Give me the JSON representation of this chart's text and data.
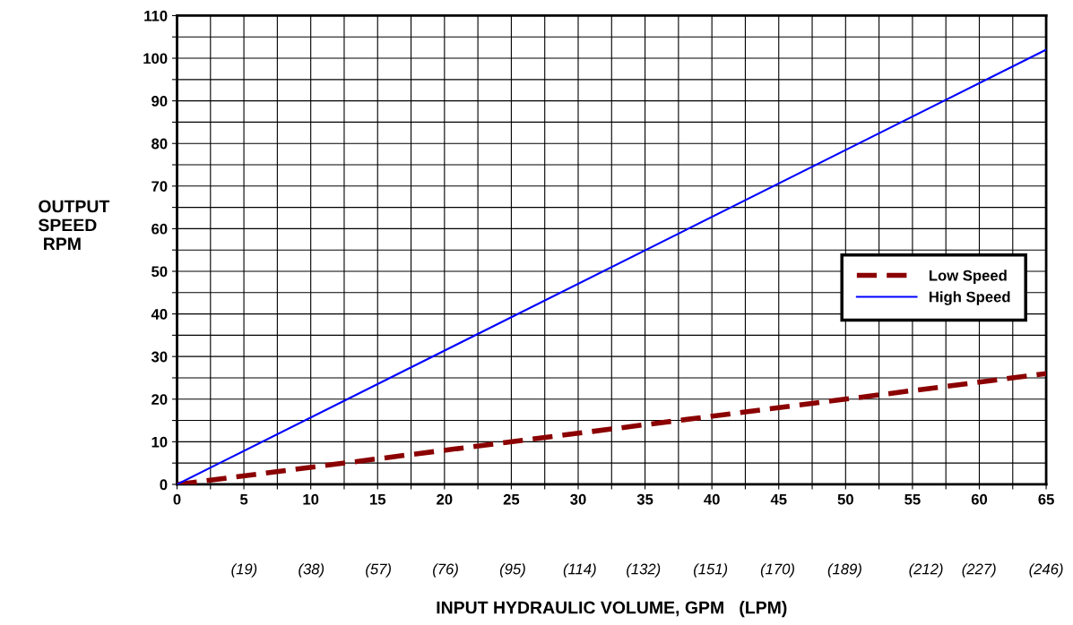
{
  "chart_data": {
    "type": "line",
    "xlabel": "INPUT HYDRAULIC VOLUME, GPM   (LPM)",
    "ylabel": "OUTPUT\nSPEED\n RPM",
    "x": [
      0,
      65
    ],
    "series": [
      {
        "name": "Low Speed",
        "color": "#8b0000",
        "values": [
          0,
          26
        ],
        "line_style": "dashed"
      },
      {
        "name": "High Speed",
        "color": "#0000ff",
        "values": [
          0,
          102
        ],
        "line_style": "solid"
      }
    ],
    "xlim": [
      0,
      65
    ],
    "xticks": [
      0,
      {
        "value": 2.5,
        "label": null
      },
      5,
      {
        "value": 7.5,
        "label": null
      },
      10,
      {
        "value": 12.5,
        "label": null
      },
      15,
      {
        "value": 17.5,
        "label": null
      },
      20,
      {
        "value": 22.5,
        "label": null
      },
      25,
      {
        "value": 27.5,
        "label": null
      },
      30,
      {
        "value": 32.5,
        "label": null
      },
      35,
      {
        "value": 37.5,
        "label": null
      },
      40,
      {
        "value": 42.5,
        "label": null
      },
      45,
      {
        "value": 47.5,
        "label": null
      },
      50,
      {
        "value": 52.5,
        "label": null
      },
      55,
      {
        "value": 57.5,
        "label": null
      },
      60,
      {
        "value": 62.5,
        "label": null
      },
      65
    ],
    "ylim": [
      0,
      110
    ],
    "yticks": [
      0,
      {
        "value": 5,
        "label": null
      },
      10,
      {
        "value": 15,
        "label": null
      },
      20,
      {
        "value": 25,
        "label": null
      },
      30,
      {
        "value": 35,
        "label": null
      },
      40,
      {
        "value": 45,
        "label": null
      },
      50,
      {
        "value": 55,
        "label": null
      },
      60,
      {
        "value": 65,
        "label": null
      },
      70,
      {
        "value": 75,
        "label": null
      },
      80,
      {
        "value": 85,
        "label": null
      },
      90,
      {
        "value": 95,
        "label": null
      },
      100,
      {
        "value": 105,
        "label": null
      },
      110
    ],
    "x2lim": [
      0,
      246
    ],
    "x2ticks": [
      {
        "value": 19,
        "label": "(19)"
      },
      {
        "value": 38,
        "label": "(38)"
      },
      {
        "value": 57,
        "label": "(57)"
      },
      {
        "value": 76,
        "label": "(76)"
      },
      {
        "value": 95,
        "label": "(95)"
      },
      {
        "value": 114,
        "label": "(114)"
      },
      {
        "value": 132,
        "label": "(132)"
      },
      {
        "value": 151,
        "label": "(151)"
      },
      {
        "value": 170,
        "label": "(170)"
      },
      {
        "value": 189,
        "label": "(189)"
      },
      {
        "value": 212,
        "label": "(212)"
      },
      {
        "value": 227,
        "label": "(227)"
      },
      {
        "value": 246,
        "label": "(246)"
      }
    ],
    "grid": true,
    "legend": "center right",
    "marker": "none"
  }
}
